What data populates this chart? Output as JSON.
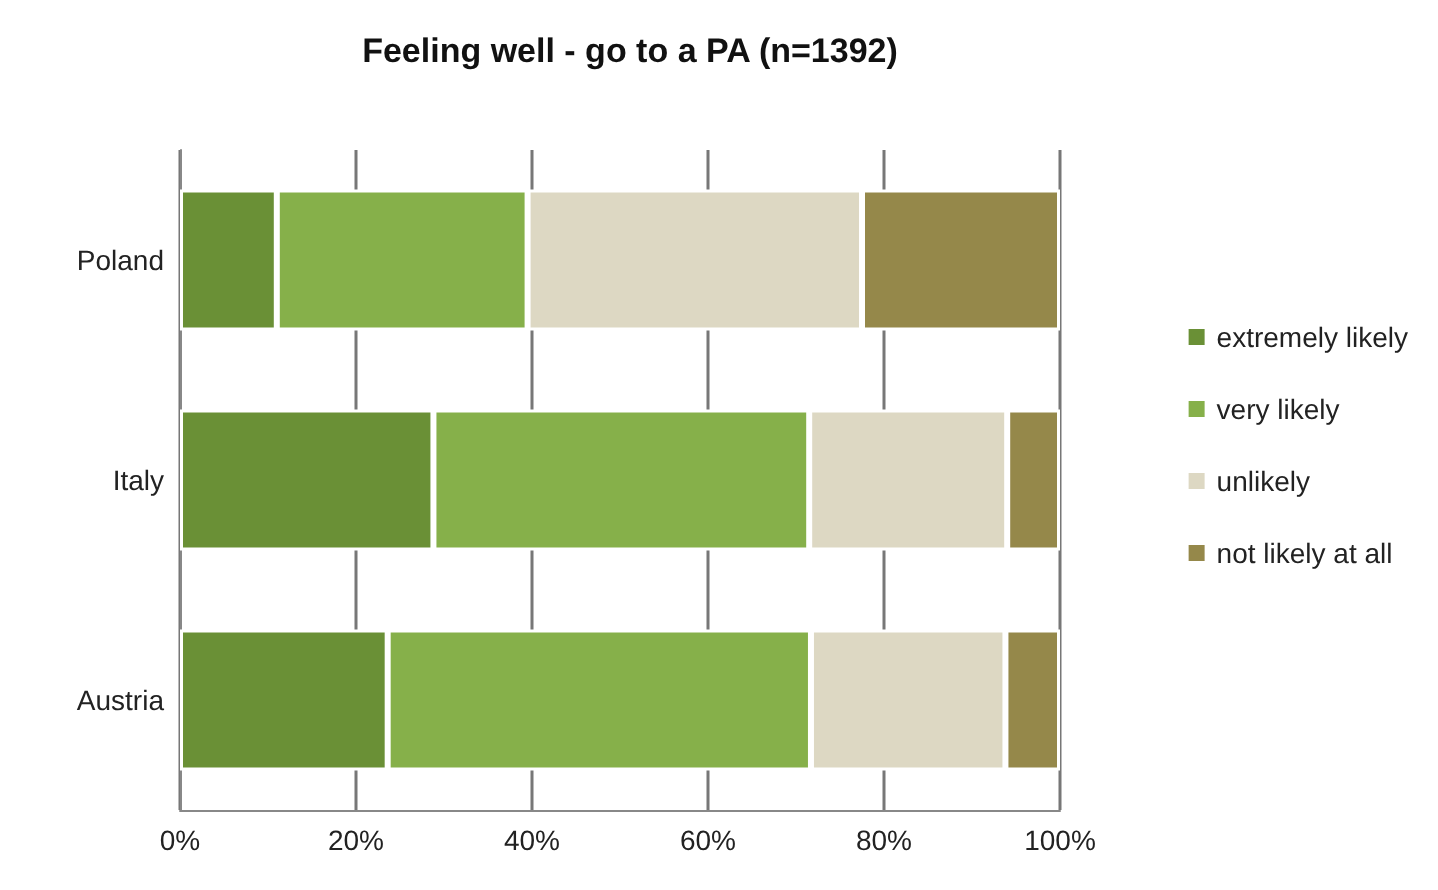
{
  "chart_data": {
    "type": "bar",
    "title": "Feeling well - go to a PA (n=1392)",
    "orientation": "horizontal",
    "stacked": true,
    "categories": [
      "Poland",
      "Italy",
      "Austria"
    ],
    "series": [
      {
        "name": "extremely likely",
        "color": "#6a9036",
        "values": [
          11,
          28.8,
          23.6
        ]
      },
      {
        "name": "very likely",
        "color": "#86b04a",
        "values": [
          28.5,
          42.7,
          48.1
        ]
      },
      {
        "name": "unlikely",
        "color": "#ddd8c3",
        "values": [
          38,
          22.5,
          22.1
        ]
      },
      {
        "name": "not likely at all",
        "color": "#95884a",
        "values": [
          22.5,
          6,
          6.2
        ]
      }
    ],
    "xlim": [
      0,
      100
    ],
    "xticks": [
      {
        "value": 0,
        "label": "0%"
      },
      {
        "value": 20,
        "label": "20%"
      },
      {
        "value": 40,
        "label": "40%"
      },
      {
        "value": 60,
        "label": "60%"
      },
      {
        "value": 80,
        "label": "80%"
      },
      {
        "value": 100,
        "label": "100%"
      }
    ],
    "grid": "x",
    "legend": "right"
  }
}
